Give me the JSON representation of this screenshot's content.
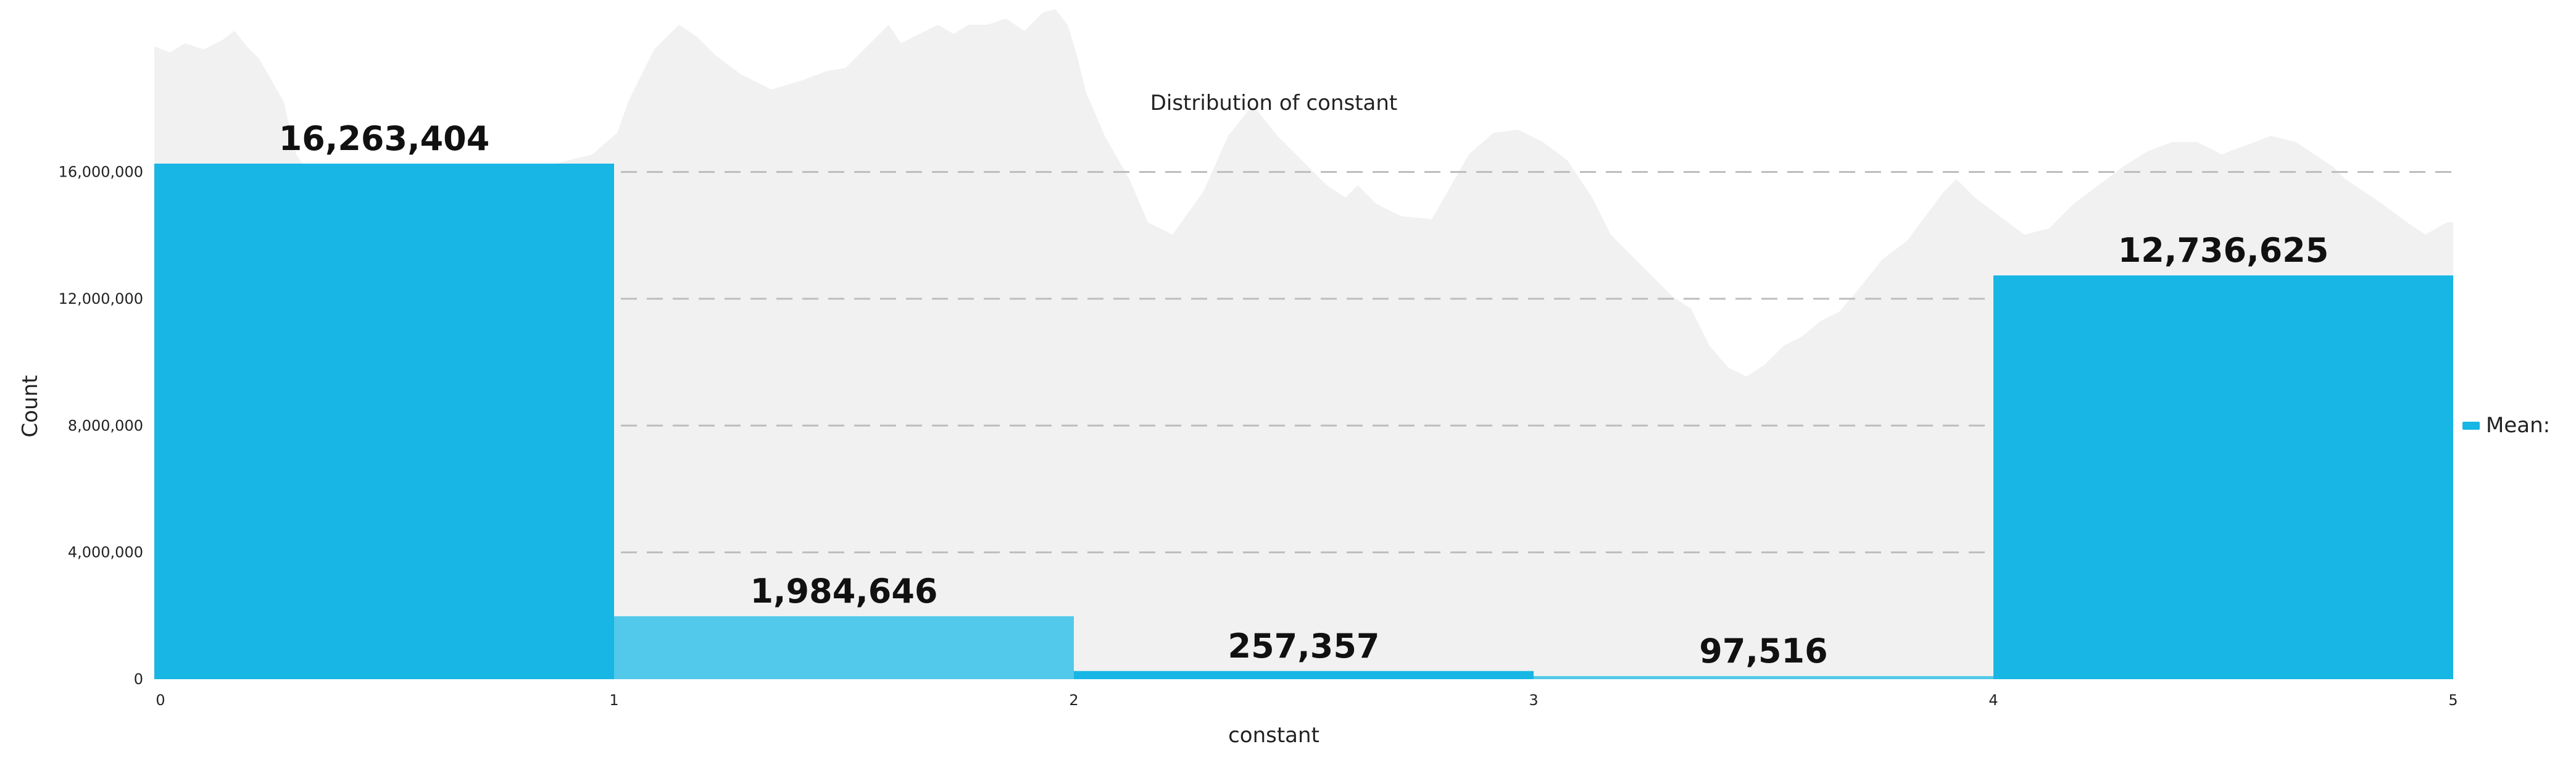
{
  "chart_data": {
    "type": "bar",
    "title": "Distribution of constant",
    "xlabel": "constant",
    "ylabel": "Count",
    "bins": [
      {
        "x0": 0,
        "x1": 1,
        "value": 16263404,
        "label": "16,263,404",
        "color": "#17b6e4"
      },
      {
        "x0": 1,
        "x1": 2,
        "value": 1984646,
        "label": "1,984,646",
        "color": "#52c9ea"
      },
      {
        "x0": 2,
        "x1": 3,
        "value": 257357,
        "label": "257,357",
        "color": "#17b6e4"
      },
      {
        "x0": 3,
        "x1": 4,
        "value": 97516,
        "label": "97,516",
        "color": "#52c9ea"
      },
      {
        "x0": 4,
        "x1": 5,
        "value": 12736625,
        "label": "12,736,625",
        "color": "#17b6e4"
      }
    ],
    "xticks": [
      "0",
      "1",
      "2",
      "3",
      "4",
      "5"
    ],
    "xlim": [
      0,
      5
    ],
    "yticks": [
      {
        "value": 0,
        "label": "0"
      },
      {
        "value": 4000000,
        "label": "4,000,000"
      },
      {
        "value": 8000000,
        "label": "8,000,000"
      },
      {
        "value": 12000000,
        "label": "12,000,000"
      },
      {
        "value": 16000000,
        "label": "16,000,000"
      }
    ],
    "ylim": [
      0,
      16263404
    ],
    "grid": "horizontal-dashed",
    "legend": {
      "label": "Mean:",
      "placement": "right",
      "color": "#17b6e4"
    },
    "background_color": "#f1f1f1"
  }
}
